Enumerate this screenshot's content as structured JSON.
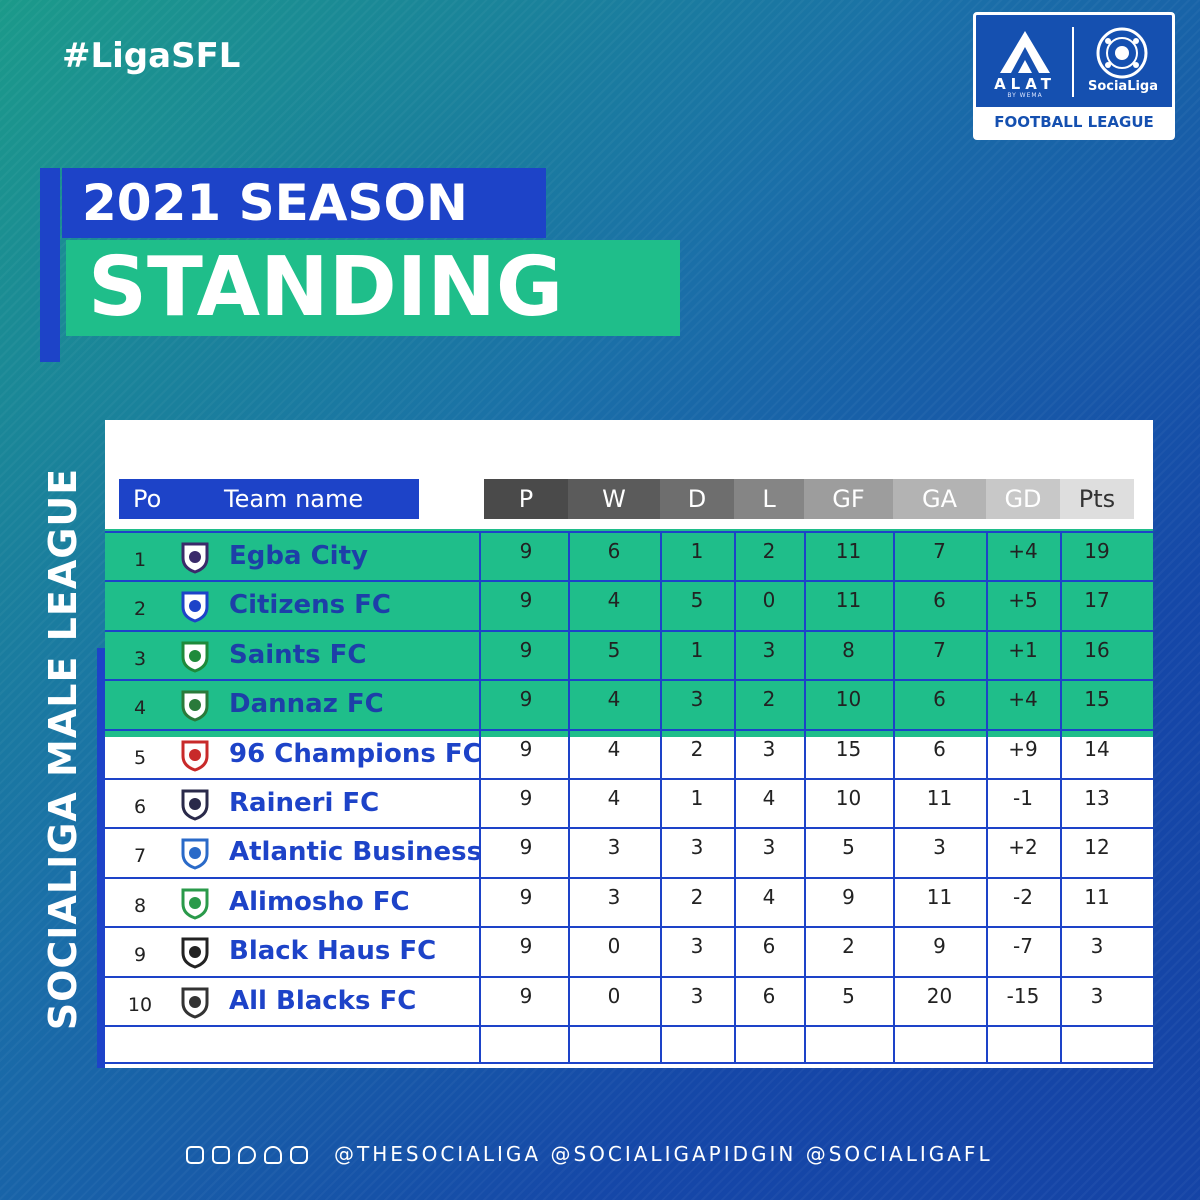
{
  "hashtag": "#LigaSFL",
  "logo": {
    "alat": "ALAT",
    "alat_sub": "BY WEMA",
    "socialiga": "SociaLiga",
    "league": "FOOTBALL LEAGUE"
  },
  "title": {
    "season": "2021 SEASON",
    "standing": "STANDING"
  },
  "side_label": "SOCIALIGA MALE LEAGUE",
  "colors": {
    "accent_blue": "#1d43c8",
    "accent_green": "#1fbe8a"
  },
  "table": {
    "columns": {
      "po": "Po",
      "team": "Team name",
      "stats": [
        "P",
        "W",
        "D",
        "L",
        "GF",
        "GA",
        "GD",
        "Pts"
      ]
    },
    "rows": [
      {
        "pos": "1",
        "team": "Egba City",
        "p": "9",
        "w": "6",
        "d": "1",
        "l": "2",
        "gf": "11",
        "ga": "7",
        "gd": "+4",
        "pts": "19"
      },
      {
        "pos": "2",
        "team": "Citizens FC",
        "p": "9",
        "w": "4",
        "d": "5",
        "l": "0",
        "gf": "11",
        "ga": "6",
        "gd": "+5",
        "pts": "17"
      },
      {
        "pos": "3",
        "team": "Saints FC",
        "p": "9",
        "w": "5",
        "d": "1",
        "l": "3",
        "gf": "8",
        "ga": "7",
        "gd": "+1",
        "pts": "16"
      },
      {
        "pos": "4",
        "team": "Dannaz FC",
        "p": "9",
        "w": "4",
        "d": "3",
        "l": "2",
        "gf": "10",
        "ga": "6",
        "gd": "+4",
        "pts": "15"
      },
      {
        "pos": "5",
        "team": "96 Champions FC",
        "p": "9",
        "w": "4",
        "d": "2",
        "l": "3",
        "gf": "15",
        "ga": "6",
        "gd": "+9",
        "pts": "14"
      },
      {
        "pos": "6",
        "team": "Raineri FC",
        "p": "9",
        "w": "4",
        "d": "1",
        "l": "4",
        "gf": "10",
        "ga": "11",
        "gd": "-1",
        "pts": "13"
      },
      {
        "pos": "7",
        "team": "Atlantic Business",
        "p": "9",
        "w": "3",
        "d": "3",
        "l": "3",
        "gf": "5",
        "ga": "3",
        "gd": "+2",
        "pts": "12"
      },
      {
        "pos": "8",
        "team": "Alimosho FC",
        "p": "9",
        "w": "3",
        "d": "2",
        "l": "4",
        "gf": "9",
        "ga": "11",
        "gd": "-2",
        "pts": "11"
      },
      {
        "pos": "9",
        "team": "Black Haus FC",
        "p": "9",
        "w": "0",
        "d": "3",
        "l": "6",
        "gf": "2",
        "ga": "9",
        "gd": "-7",
        "pts": "3"
      },
      {
        "pos": "10",
        "team": "All Blacks FC",
        "p": "9",
        "w": "0",
        "d": "3",
        "l": "6",
        "gf": "5",
        "ga": "20",
        "gd": "-15",
        "pts": "3"
      }
    ]
  },
  "social": {
    "icons": [
      "instagram-icon",
      "facebook-icon",
      "twitter-icon",
      "snapchat-icon",
      "youtube-icon"
    ],
    "handles": "@THESOCIALIGA @SOCIALIGAPIDGIN @SOCIALIGAFL"
  }
}
